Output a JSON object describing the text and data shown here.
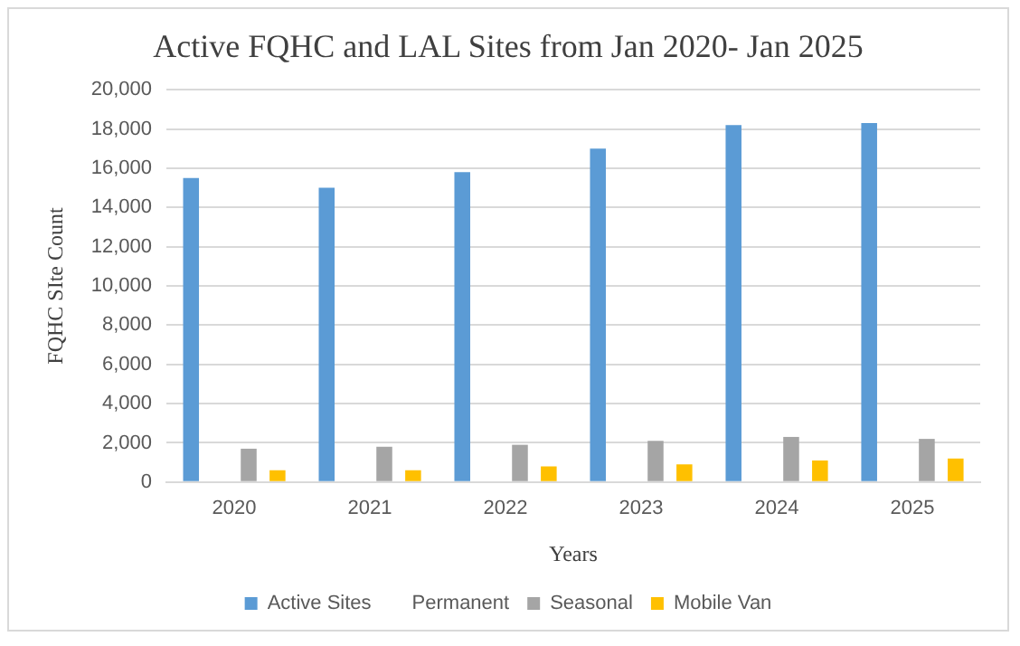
{
  "chart_data": {
    "type": "bar",
    "title": "Active FQHC and LAL Sites from Jan 2020- Jan 2025",
    "xlabel": "Years",
    "ylabel": "FQHC SIte Count",
    "categories": [
      "2020",
      "2021",
      "2022",
      "2023",
      "2024",
      "2025"
    ],
    "series": [
      {
        "name": "Active Sites",
        "color": "#5b9bd5",
        "values": [
          15500,
          15000,
          15800,
          17000,
          18200,
          18300
        ]
      },
      {
        "name": "Permanent",
        "values": [
          null,
          null,
          null,
          null,
          null,
          null
        ]
      },
      {
        "name": "Seasonal",
        "color": "#a5a5a5",
        "values": [
          1700,
          1800,
          1900,
          2100,
          2300,
          2200
        ]
      },
      {
        "name": "Mobile Van",
        "color": "#ffc000",
        "values": [
          600,
          600,
          800,
          900,
          1100,
          1200
        ]
      }
    ],
    "ylim": [
      0,
      20000
    ],
    "yticks": [
      0,
      {
        "value": 2000,
        "label": "2,000"
      },
      {
        "value": 4000,
        "label": "4,000"
      },
      {
        "value": 6000,
        "label": "6,000"
      },
      {
        "value": 8000,
        "label": "8,000"
      },
      {
        "value": 10000,
        "label": "10,000"
      },
      {
        "value": 12000,
        "label": "12,000"
      },
      {
        "value": 14000,
        "label": "14,000"
      },
      {
        "value": 16000,
        "label": "16,000"
      },
      {
        "value": 18000,
        "label": "18,000"
      },
      {
        "value": 20000,
        "label": "20,000"
      }
    ],
    "grid": "y",
    "legend": "bottom"
  }
}
